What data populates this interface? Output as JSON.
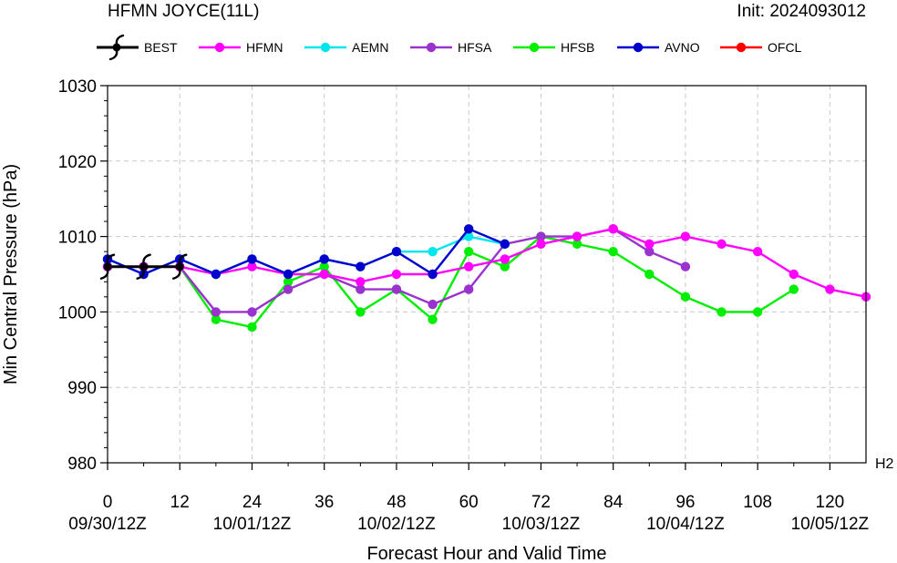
{
  "header": {
    "title": "HFMN JOYCE(11L)",
    "init_text": "Init: 2024093012",
    "corner_label": "H2"
  },
  "chart_data": {
    "type": "line",
    "title": "HFMN JOYCE(11L)",
    "xlabel": "Forecast Hour and Valid Time",
    "ylabel": "Min Central Pressure (hPa)",
    "xlim": [
      0,
      126
    ],
    "ylim": [
      980,
      1030
    ],
    "x_ticks": [
      0,
      12,
      24,
      36,
      48,
      60,
      72,
      84,
      96,
      108,
      120
    ],
    "x_ticks_minor": [
      6,
      18,
      30,
      42,
      54,
      66,
      78,
      90,
      102,
      114
    ],
    "y_ticks": [
      980,
      990,
      1000,
      1010,
      1020,
      1030
    ],
    "x_date_labels": [
      {
        "hour": 0,
        "label": "09/30/12Z"
      },
      {
        "hour": 24,
        "label": "10/01/12Z"
      },
      {
        "hour": 48,
        "label": "10/02/12Z"
      },
      {
        "hour": 72,
        "label": "10/03/12Z"
      },
      {
        "hour": 96,
        "label": "10/04/12Z"
      },
      {
        "hour": 120,
        "label": "10/05/12Z"
      }
    ],
    "grid": true,
    "legend_position": "top",
    "series": [
      {
        "name": "HFMN",
        "color": "#ff00ff",
        "x": [
          0,
          6,
          12,
          18,
          24,
          30,
          36,
          42,
          48,
          54,
          60,
          66,
          72,
          78,
          84,
          90,
          96,
          102,
          108,
          114,
          120,
          126
        ],
        "y": [
          1006,
          1006,
          1006,
          1005,
          1006,
          1005,
          1005,
          1004,
          1005,
          1005,
          1006,
          1007,
          1009,
          1010,
          1011,
          1009,
          1010,
          1009,
          1008,
          1005,
          1003,
          1002
        ]
      },
      {
        "name": "AEMN",
        "color": "#00e5ee",
        "x": [
          0,
          6,
          12,
          18,
          24,
          30,
          36,
          42,
          48,
          54,
          60,
          66
        ],
        "y": [
          1007,
          1005,
          1007,
          1005,
          1007,
          1005,
          1007,
          1006,
          1008,
          1008,
          1010,
          1009
        ]
      },
      {
        "name": "HFSA",
        "color": "#9a32cd",
        "x": [
          0,
          6,
          12,
          18,
          24,
          30,
          36,
          42,
          48,
          54,
          60,
          66,
          72,
          78,
          84,
          90,
          96
        ],
        "y": [
          1006,
          1006,
          1006,
          1000,
          1000,
          1003,
          1005,
          1003,
          1003,
          1001,
          1003,
          1009,
          1010,
          1010,
          1011,
          1008,
          1006
        ]
      },
      {
        "name": "HFSB",
        "color": "#00ee00",
        "x": [
          0,
          6,
          12,
          18,
          24,
          30,
          36,
          42,
          48,
          54,
          60,
          66,
          72,
          78,
          84,
          90,
          96,
          102,
          108,
          114
        ],
        "y": [
          1006,
          1006,
          1006,
          999,
          998,
          1004,
          1006,
          1000,
          1003,
          999,
          1008,
          1006,
          1010,
          1009,
          1008,
          1005,
          1002,
          1000,
          1000,
          1003
        ]
      },
      {
        "name": "AVNO",
        "color": "#0000cd",
        "x": [
          0,
          6,
          12,
          18,
          24,
          30,
          36,
          42,
          48,
          54,
          60,
          66
        ],
        "y": [
          1007,
          1005,
          1007,
          1005,
          1007,
          1005,
          1007,
          1006,
          1008,
          1005,
          1011,
          1009
        ]
      },
      {
        "name": "OFCL",
        "color": "#ff0000",
        "x": [],
        "y": []
      },
      {
        "name": "BEST",
        "color": "#000000",
        "x": [
          0,
          6,
          12
        ],
        "y": [
          1006,
          1006,
          1006
        ]
      }
    ],
    "legend_order": [
      "BEST",
      "HFMN",
      "AEMN",
      "HFSA",
      "HFSB",
      "AVNO",
      "OFCL"
    ]
  }
}
